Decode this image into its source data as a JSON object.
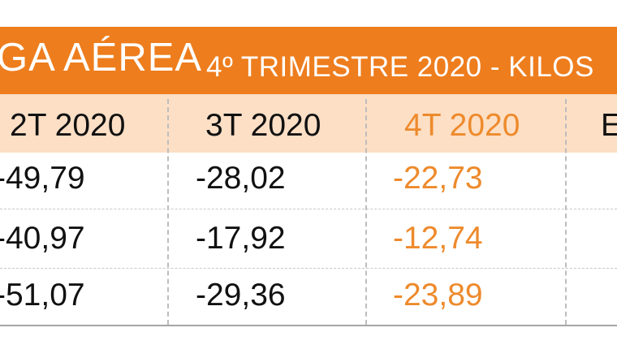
{
  "title": {
    "main": "GA AÉREA",
    "sub": "4º TRIMESTRE 2020 - KILOS"
  },
  "columns": [
    "2T 2020",
    "3T 2020",
    "4T 2020",
    "E"
  ],
  "rows": [
    [
      "-49,79",
      "-28,02",
      "-22,73"
    ],
    [
      "-40,97",
      "-17,92",
      "-12,74"
    ],
    [
      "-51,07",
      "-29,36",
      "-23,89"
    ]
  ],
  "colors": {
    "title_background": "#ee7d1d",
    "header_background": "#fcdfc5",
    "highlight_text": "#ee8a2c"
  }
}
